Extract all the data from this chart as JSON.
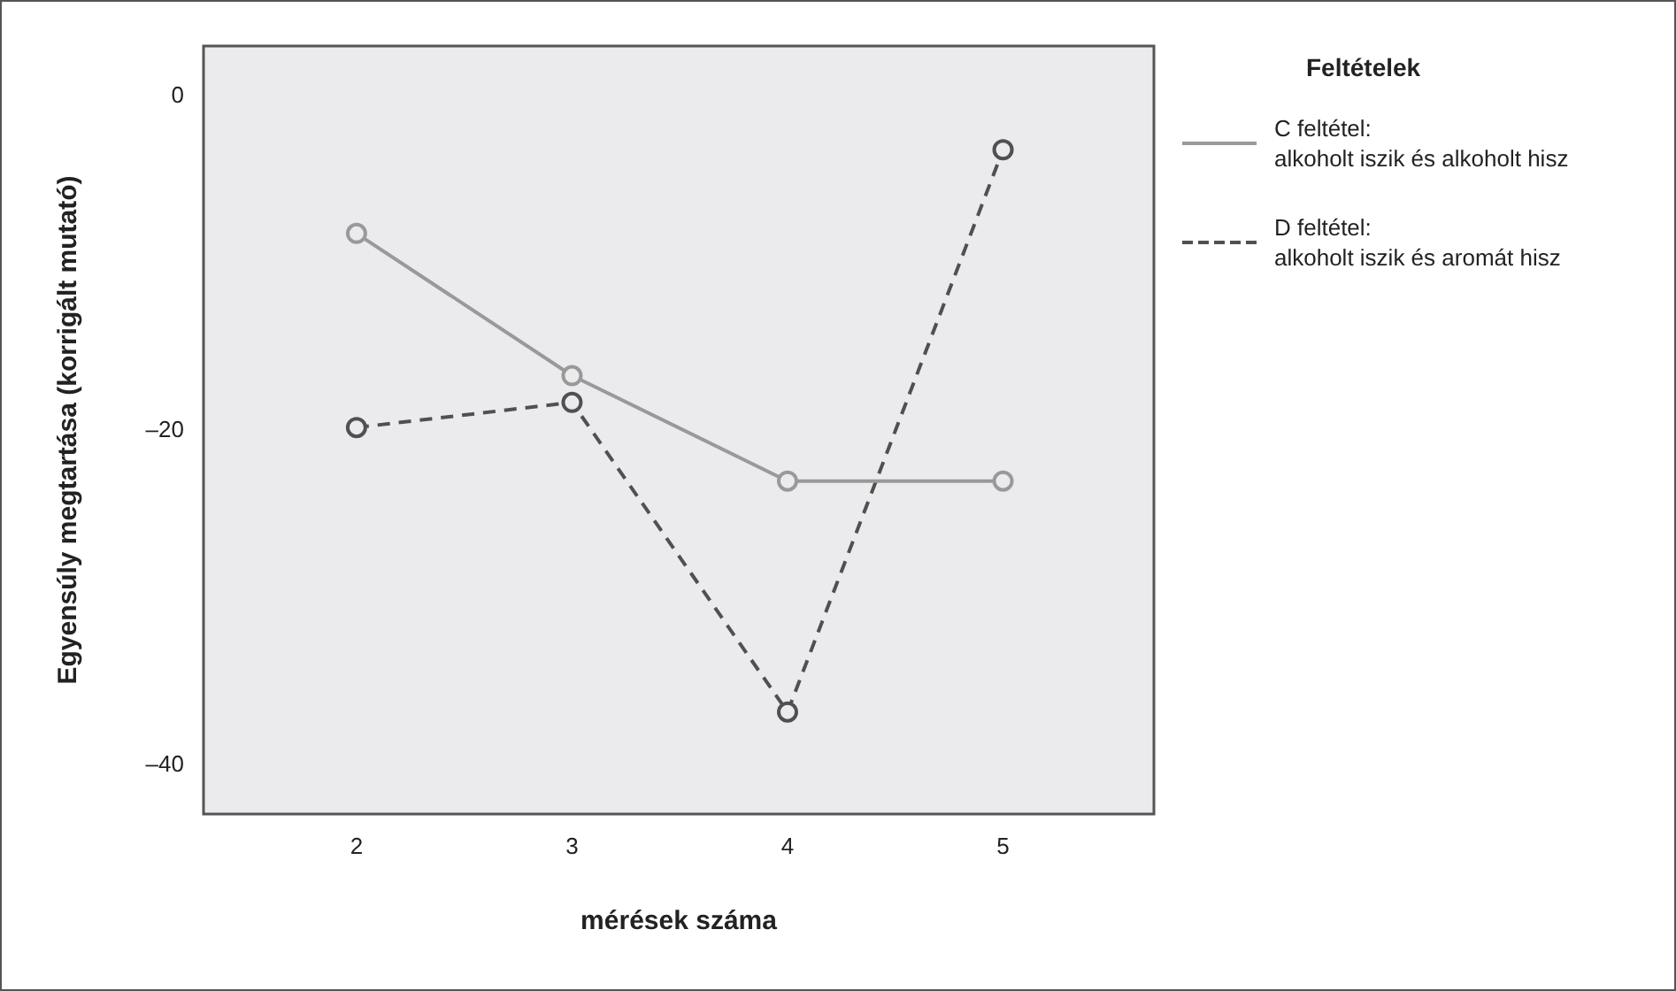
{
  "chart_data": {
    "type": "line",
    "xlabel": "mérések száma",
    "ylabel": "Egyensúly megtartása (korrigált mutató)",
    "legend_title": "Feltételek",
    "x": [
      2,
      3,
      4,
      5
    ],
    "xlim": [
      1.29,
      5.7
    ],
    "xticks": [
      2,
      3,
      4,
      5
    ],
    "ylim": [
      -42.9,
      3
    ],
    "yticks": [
      0,
      {
        "value": -20,
        "label": "–20"
      },
      {
        "value": -40,
        "label": "–40"
      }
    ],
    "grid": false,
    "legend": "right",
    "marker": "circle",
    "series": [
      {
        "name": "C feltétel:\nalkoholt iszik és alkoholt hisz",
        "color": "#999999",
        "line_style": "solid",
        "values": [
          -8.2,
          -16.7,
          -23.0,
          -23.0
        ]
      },
      {
        "name": "D feltétel:\nalkoholt iszik és aromát hisz",
        "color": "#505050",
        "line_style": "dashed",
        "values": [
          -19.8,
          -18.3,
          -36.8,
          -3.2
        ]
      }
    ]
  }
}
